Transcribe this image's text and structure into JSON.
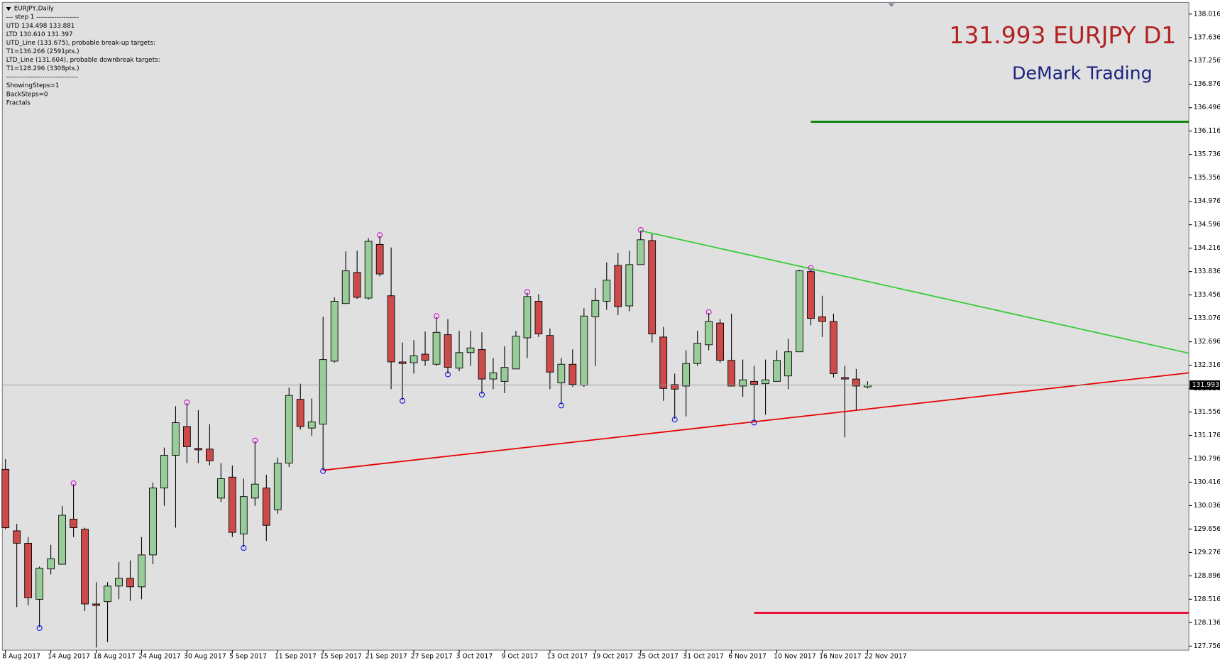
{
  "chart_data": {
    "type": "candlestick",
    "title": "131.993 EURJPY D1",
    "subtitle": "DeMark Trading",
    "info_lines": [
      "EURJPY,Daily",
      "---   step 1   -------------------",
      "UTD 134.498   133.881",
      "LTD  130.610  131.397",
      "UTD_Line (133.675), probable break-up targets:",
      "T1=136.266 (2591pts.)",
      "LTD_Line (131.604), probable downbreak targets:",
      "T1=128.296 (3308pts.)",
      "--------------------------------",
      "ShowingSteps=1",
      "BackSteps=0",
      "Fractals"
    ],
    "categories": [
      "8 Aug 2017",
      null,
      null,
      null,
      "14 Aug 2017",
      null,
      null,
      null,
      "18 Aug 2017",
      null,
      null,
      null,
      "24 Aug 2017",
      null,
      null,
      null,
      "30 Aug 2017",
      null,
      null,
      null,
      "5 Sep 2017",
      null,
      null,
      null,
      "11 Sep 2017",
      null,
      null,
      null,
      "15 Sep 2017",
      null,
      null,
      null,
      "21 Sep 2017",
      null,
      null,
      null,
      "27 Sep 2017",
      null,
      null,
      null,
      "3 Oct 2017",
      null,
      null,
      null,
      "9 Oct 2017",
      null,
      null,
      null,
      "13 Oct 2017",
      null,
      null,
      null,
      "19 Oct 2017",
      null,
      null,
      null,
      "25 Oct 2017",
      null,
      null,
      null,
      "31 Oct 2017",
      null,
      null,
      null,
      "6 Nov 2017",
      null,
      null,
      null,
      "10 Nov 2017",
      null,
      null,
      null,
      "16 Nov 2017",
      null,
      null,
      null,
      "22 Nov 2017"
    ],
    "open": [
      130.625,
      129.627,
      129.425,
      128.516,
      129.008,
      129.084,
      129.817,
      129.653,
      128.44,
      128.478,
      128.73,
      128.857,
      128.718,
      129.236,
      130.322,
      130.853,
      131.32,
      130.966,
      130.954,
      130.158,
      130.499,
      129.577,
      130.158,
      130.322,
      129.969,
      130.726,
      131.762,
      131.295,
      131.358,
      132.381,
      133.316,
      133.821,
      133.405,
      134.276,
      133.443,
      132.369,
      132.356,
      132.495,
      132.331,
      132.811,
      132.268,
      132.52,
      132.571,
      132.091,
      132.053,
      132.255,
      132.76,
      133.354,
      132.798,
      132.028,
      132.331,
      131.99,
      133.101,
      133.354,
      133.935,
      133.278,
      133.948,
      134.339,
      132.773,
      132.002,
      131.977,
      132.343,
      132.647,
      133.0,
      132.394,
      131.977,
      132.053,
      132.015,
      132.053,
      132.141,
      132.533,
      133.835,
      133.101,
      133.026,
      132.116,
      132.091,
      131.964
    ],
    "high": [
      130.79,
      129.741,
      129.526,
      129.046,
      129.4,
      130.032,
      130.385,
      129.678,
      128.794,
      128.794,
      129.122,
      129.147,
      129.526,
      130.411,
      130.979,
      131.649,
      131.699,
      131.586,
      131.358,
      130.726,
      130.689,
      130.474,
      131.08,
      130.537,
      130.815,
      131.952,
      132.015,
      131.775,
      133.101,
      133.417,
      134.163,
      134.175,
      134.377,
      134.415,
      134.226,
      132.684,
      132.722,
      132.861,
      133.101,
      133.063,
      132.874,
      132.874,
      132.849,
      132.432,
      132.621,
      132.874,
      133.493,
      133.468,
      132.912,
      132.432,
      132.571,
      133.24,
      133.569,
      133.986,
      134.137,
      134.175,
      134.498,
      134.453,
      132.937,
      132.179,
      132.558,
      132.874,
      133.165,
      133.063,
      133.152,
      132.407,
      132.305,
      132.407,
      132.558,
      132.748,
      133.86,
      133.881,
      133.443,
      133.152,
      132.305,
      132.255,
      132.053
    ],
    "low": [
      129.653,
      128.389,
      128.415,
      128.061,
      128.92,
      129.084,
      129.526,
      128.326,
      127.732,
      127.821,
      128.516,
      128.49,
      128.516,
      129.084,
      130.032,
      129.678,
      130.726,
      130.726,
      130.689,
      130.095,
      129.526,
      129.362,
      130.032,
      129.463,
      129.905,
      130.663,
      131.27,
      131.169,
      130.61,
      132.356,
      133.316,
      133.392,
      133.379,
      133.758,
      131.927,
      131.75,
      132.179,
      132.305,
      132.305,
      132.179,
      132.217,
      132.305,
      131.851,
      131.927,
      131.863,
      132.255,
      132.432,
      132.773,
      131.927,
      131.674,
      131.964,
      131.964,
      132.305,
      133.215,
      133.127,
      133.19,
      133.948,
      132.684,
      131.737,
      131.446,
      131.484,
      132.305,
      132.558,
      132.356,
      131.977,
      131.8,
      131.397,
      131.51,
      132.053,
      131.927,
      132.533,
      132.962,
      132.773,
      132.116,
      131.143,
      131.573,
      131.939
    ],
    "close": [
      129.678,
      129.425,
      128.541,
      129.021,
      129.173,
      129.88,
      129.678,
      128.44,
      128.415,
      128.73,
      128.857,
      128.718,
      129.236,
      130.322,
      130.853,
      131.383,
      130.992,
      130.941,
      130.764,
      130.474,
      129.602,
      130.183,
      130.385,
      129.716,
      130.726,
      131.825,
      131.32,
      131.396,
      132.407,
      133.354,
      133.847,
      133.417,
      134.327,
      133.796,
      132.369,
      132.343,
      132.47,
      132.394,
      132.849,
      132.28,
      132.52,
      132.596,
      132.091,
      132.192,
      132.28,
      132.786,
      133.43,
      132.823,
      132.204,
      132.331,
      132.002,
      133.114,
      133.367,
      133.695,
      133.266,
      133.948,
      134.352,
      132.823,
      131.939,
      131.927,
      132.343,
      132.672,
      133.026,
      132.394,
      131.977,
      132.078,
      132.002,
      132.078,
      132.394,
      132.533,
      133.847,
      133.076,
      133.026,
      132.179,
      132.091,
      131.977,
      131.993
    ],
    "up_color": "#98cc98",
    "down_color": "#cc4a4a",
    "fractals_up": [
      6,
      16,
      22,
      33,
      38,
      46,
      56,
      62,
      71
    ],
    "fractals_down": [
      3,
      21,
      28,
      35,
      39,
      42,
      49,
      59,
      66
    ],
    "upper_line": {
      "bars": [
        56,
        71
      ],
      "color": "#33cc33"
    },
    "lower_line": {
      "bars": [
        28,
        66
      ],
      "color": "#e60000"
    },
    "targets": [
      {
        "value": 136.266,
        "from_bar": 71,
        "color": "#008000"
      },
      {
        "value": 128.296,
        "from_bar": 66,
        "color": "#e8002a"
      }
    ],
    "ylim": [
      127.69,
      138.205
    ],
    "yticks": [
      127.756,
      128.136,
      128.516,
      128.896,
      129.276,
      129.656,
      130.036,
      130.416,
      130.796,
      131.176,
      131.556,
      131.936,
      132.316,
      132.696,
      133.076,
      133.456,
      133.836,
      134.216,
      134.596,
      134.976,
      135.356,
      135.736,
      136.116,
      136.496,
      136.876,
      137.256,
      137.636,
      138.016
    ]
  }
}
